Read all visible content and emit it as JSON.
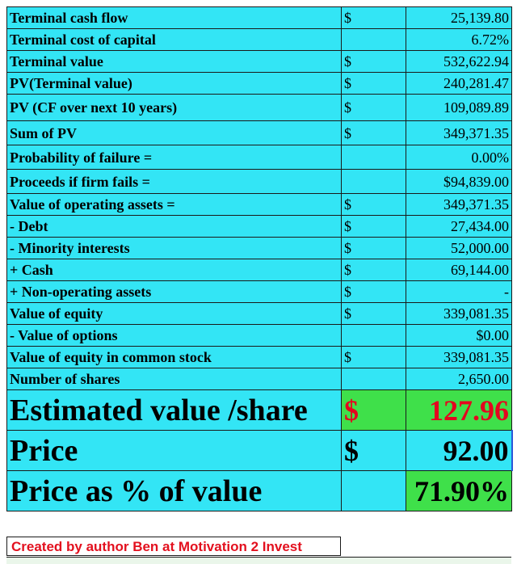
{
  "colors": {
    "cell_fill": "#33e5f5",
    "highlight_fill": "#3fe04a",
    "emphasis_text": "#e4061f",
    "credit_text": "#e3101e"
  },
  "rows": [
    {
      "label": "Terminal cash flow",
      "currency": "$",
      "value": "25,139.80"
    },
    {
      "label": "Terminal cost of capital",
      "currency": "",
      "value": "6.72%"
    },
    {
      "label": "Terminal value",
      "currency": "$",
      "value": "532,622.94"
    },
    {
      "label": "PV(Terminal value)",
      "currency": "$",
      "value": "240,281.47"
    },
    {
      "label": "PV (CF over next 10 years)",
      "currency": "$",
      "value": "109,089.89"
    },
    {
      "label": "Sum of PV",
      "currency": "$",
      "value": "349,371.35"
    },
    {
      "label": "Probability of failure =",
      "currency": "",
      "value": "0.00%"
    },
    {
      "label": "Proceeds if firm fails =",
      "currency": "",
      "value": "$94,839.00"
    },
    {
      "label": "Value of operating assets =",
      "currency": "$",
      "value": "349,371.35"
    },
    {
      "label": " - Debt",
      "currency": "$",
      "value": "27,434.00"
    },
    {
      "label": " - Minority interests",
      "currency": "$",
      "value": "52,000.00"
    },
    {
      "label": " +  Cash",
      "currency": "$",
      "value": "69,144.00"
    },
    {
      "label": " + Non-operating assets",
      "currency": "$",
      "value": "-"
    },
    {
      "label": "Value of equity",
      "currency": "$",
      "value": "339,081.35"
    },
    {
      "label": " - Value of options",
      "currency": "",
      "value": "$0.00"
    },
    {
      "label": "Value of equity in common stock",
      "currency": "$",
      "value": "339,081.35"
    },
    {
      "label": "Number of shares",
      "currency": "",
      "value": "2,650.00"
    }
  ],
  "summary": {
    "estimated": {
      "label": "Estimated value /share",
      "currency": "$",
      "value": "127.96"
    },
    "price": {
      "label": "Price",
      "currency": "$",
      "value": "92.00"
    },
    "pct": {
      "label": "Price as % of value",
      "currency": "",
      "value": "71.90%"
    }
  },
  "credit": "Created by author Ben at Motivation 2 Invest"
}
